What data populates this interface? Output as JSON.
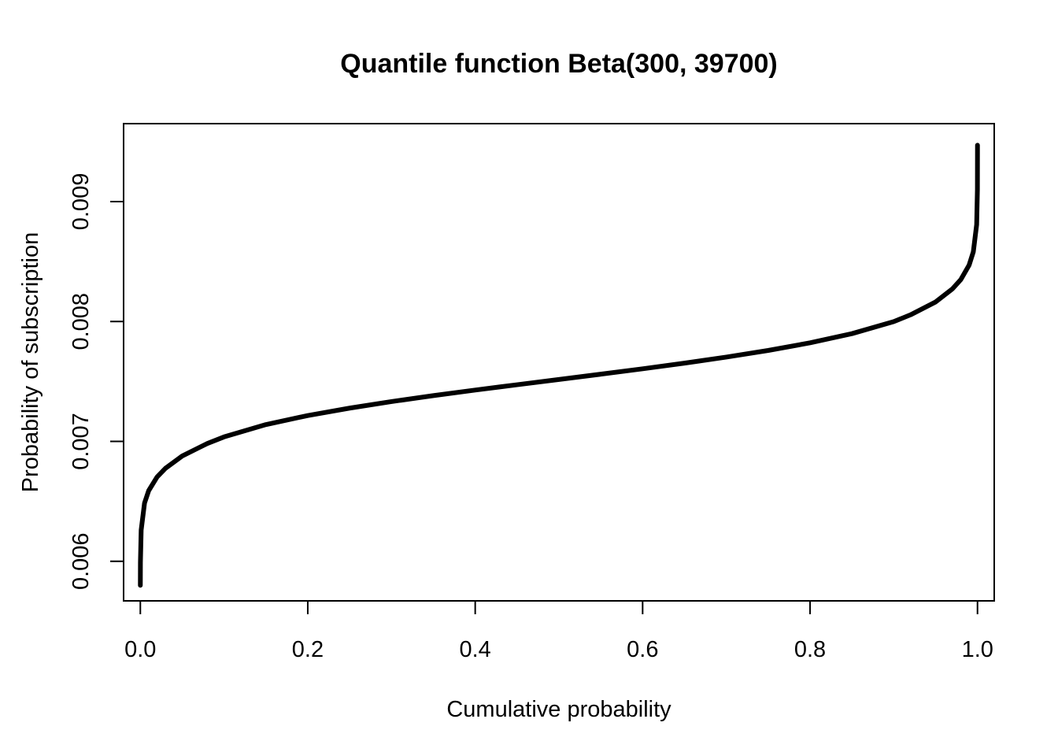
{
  "chart_data": {
    "type": "line",
    "title": "Quantile function Beta(300, 39700)",
    "xlabel": "Cumulative probability",
    "ylabel": "Probability of subscription",
    "xlim": [
      -0.02,
      1.02
    ],
    "ylim": [
      0.00567,
      0.00965
    ],
    "x_ticks": [
      0.0,
      0.2,
      0.4,
      0.6,
      0.8,
      1.0
    ],
    "x_tick_labels": [
      "0.0",
      "0.2",
      "0.4",
      "0.6",
      "0.8",
      "1.0"
    ],
    "y_ticks": [
      0.006,
      0.007,
      0.008,
      0.009
    ],
    "y_tick_labels": [
      "0.006",
      "0.007",
      "0.008",
      "0.009"
    ],
    "grid": false,
    "legend": "none",
    "line_color": "#000000",
    "series": [
      {
        "x": [
          1e-05,
          0.0001,
          0.001,
          0.005,
          0.01,
          0.02,
          0.03,
          0.05,
          0.08,
          0.1,
          0.15,
          0.2,
          0.25,
          0.3,
          0.35,
          0.4,
          0.45,
          0.5,
          0.55,
          0.6,
          0.65,
          0.7,
          0.75,
          0.8,
          0.85,
          0.9,
          0.92,
          0.95,
          0.97,
          0.98,
          0.99,
          0.995,
          0.999,
          0.9999,
          0.99999
        ],
        "y": [
          0.0058,
          0.00599,
          0.00626,
          0.0064855,
          0.0065895,
          0.006703,
          0.0067755,
          0.006878,
          0.0069825,
          0.0070375,
          0.00714,
          0.0072155,
          0.0072775,
          0.007332,
          0.0073815,
          0.007428,
          0.0074725,
          0.0075165,
          0.0075605,
          0.0076055,
          0.0076525,
          0.007703,
          0.0077585,
          0.007822,
          0.0078985,
          0.007999,
          0.0080555,
          0.008163,
          0.0082715,
          0.0083485,
          0.0084705,
          0.0085805,
          0.0088075,
          0.0091,
          0.00947
        ]
      }
    ]
  }
}
